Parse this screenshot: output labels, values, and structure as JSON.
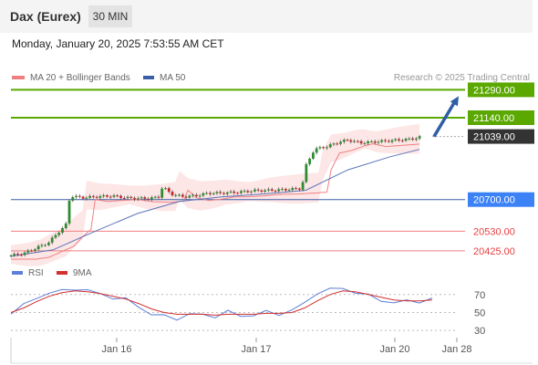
{
  "header": {
    "title": "Dax (Eurex)",
    "interval": "30 MIN"
  },
  "datetime": "Monday, January 20, 2025 7:53:55 AM CET",
  "legend": {
    "ma20": "MA 20 + Bollinger Bands",
    "ma50": "MA 50",
    "watermark": "Research © 2025 Trading Central"
  },
  "rsi_legend": {
    "rsi": "RSI",
    "ma9": "9MA"
  },
  "colors": {
    "resistance": "#5aa800",
    "support": "#3b82f6",
    "support_line": "#3a5fa8",
    "minor": "#e84040",
    "current": "#333333",
    "ma20": "#f08080",
    "ma50": "#5b74b8",
    "bollinger": "#fde0e0",
    "arrow": "#2f5da6",
    "candle_up": "#2e8b2e",
    "candle_down": "#c62828",
    "rsi": "#5b7fd8",
    "rsi_ma": "#d32f2f"
  },
  "chart_data": [
    {
      "type": "candlestick",
      "title": "",
      "x_ticks": [
        "Jan 16",
        "Jan 17",
        "Jan 20",
        "Jan 28"
      ],
      "y_range": [
        20380,
        21390
      ],
      "levels": [
        {
          "label": "21290.00",
          "value": 21290,
          "kind": "resistance"
        },
        {
          "label": "21140.00",
          "value": 21140,
          "kind": "resistance"
        },
        {
          "label": "21039.00",
          "value": 21039,
          "kind": "current"
        },
        {
          "label": "20700.00",
          "value": 20700,
          "kind": "support"
        },
        {
          "label": "20530.00",
          "value": 20530,
          "kind": "minor"
        },
        {
          "label": "20425.00",
          "value": 20425,
          "kind": "minor"
        }
      ],
      "price_path": [
        [
          0,
          20400
        ],
        [
          3,
          20410
        ],
        [
          6,
          20440
        ],
        [
          9,
          20470
        ],
        [
          11,
          20520
        ],
        [
          13,
          20560
        ],
        [
          14,
          20720
        ],
        [
          17,
          20710
        ],
        [
          20,
          20715
        ],
        [
          24,
          20720
        ],
        [
          28,
          20708
        ],
        [
          32,
          20706
        ],
        [
          35,
          20712
        ],
        [
          36,
          20770
        ],
        [
          38,
          20730
        ],
        [
          41,
          20715
        ],
        [
          44,
          20722
        ],
        [
          47,
          20735
        ],
        [
          50,
          20735
        ],
        [
          54,
          20740
        ],
        [
          58,
          20748
        ],
        [
          62,
          20750
        ],
        [
          66,
          20755
        ],
        [
          69,
          20760
        ],
        [
          70,
          20880
        ],
        [
          72,
          20970
        ],
        [
          75,
          20985
        ],
        [
          78,
          21010
        ],
        [
          80,
          21020
        ],
        [
          83,
          21005
        ],
        [
          86,
          21010
        ],
        [
          89,
          21015
        ],
        [
          92,
          21020
        ],
        [
          95,
          21025
        ],
        [
          97,
          21035
        ]
      ],
      "ma50_path": [
        [
          0,
          20395
        ],
        [
          10,
          20430
        ],
        [
          20,
          20530
        ],
        [
          30,
          20625
        ],
        [
          40,
          20690
        ],
        [
          50,
          20715
        ],
        [
          60,
          20730
        ],
        [
          70,
          20750
        ],
        [
          80,
          20860
        ],
        [
          90,
          20930
        ],
        [
          97,
          20970
        ]
      ],
      "forecast_arrow": {
        "from": 21039,
        "to": 21290
      }
    },
    {
      "type": "line",
      "title": "",
      "y_ticks": [
        "70",
        "50",
        "30"
      ],
      "y_range": [
        20,
        85
      ],
      "series": [
        {
          "name": "RSI",
          "values": [
            48,
            58,
            68,
            70,
            75,
            77,
            73,
            72,
            66,
            64,
            58,
            47,
            46,
            44,
            47,
            48,
            46,
            50,
            47,
            47,
            50,
            49,
            52,
            60,
            73,
            75,
            77,
            73,
            68,
            64,
            61,
            62,
            63,
            65
          ]
        },
        {
          "name": "9MA",
          "values": [
            50,
            55,
            62,
            68,
            72,
            74,
            73,
            71,
            68,
            65,
            60,
            54,
            50,
            48,
            48,
            48,
            47,
            48,
            48,
            48,
            49,
            49,
            50,
            55,
            63,
            70,
            74,
            73,
            70,
            67,
            64,
            63,
            63,
            64
          ]
        }
      ]
    }
  ]
}
